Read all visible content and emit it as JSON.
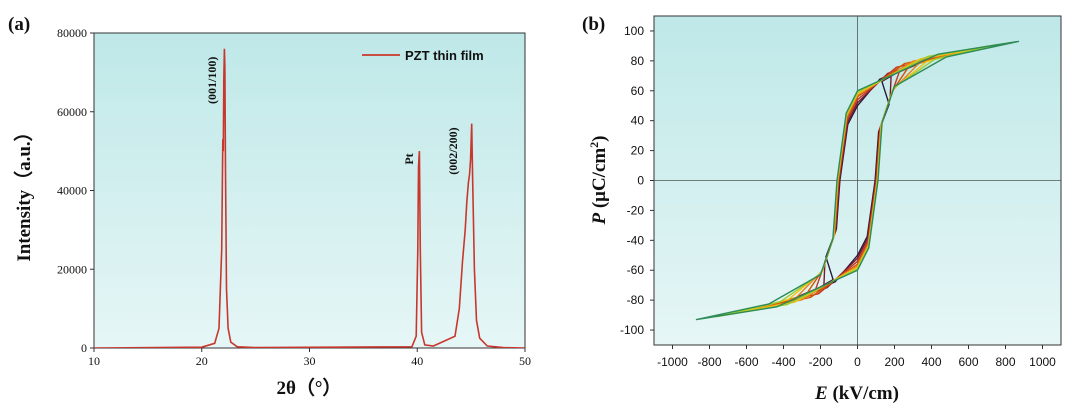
{
  "colors": {
    "plot_bg": "#bfe8e8",
    "plot_bg_light": "#e6f6f6",
    "xrd_line": "#c8372d"
  },
  "chart_data": [
    {
      "type": "line",
      "panel": "(a)",
      "xlabel": "2θ（°）",
      "ylabel": "Intensity（a.u.）",
      "xlim": [
        10,
        50
      ],
      "ylim": [
        0,
        80000
      ],
      "xticks": [
        10,
        20,
        30,
        40,
        50
      ],
      "yticks": [
        0,
        20000,
        40000,
        60000,
        80000
      ],
      "legend": {
        "position": "top-right",
        "entries": [
          "PZT thin film"
        ]
      },
      "annotations": [
        {
          "text": "(001/100)",
          "x": 21.3,
          "y": 68000
        },
        {
          "text": "Pt",
          "x": 39.6,
          "y": 48000
        },
        {
          "text": "(002/200)",
          "x": 43.7,
          "y": 50000
        }
      ],
      "series": [
        {
          "name": "PZT thin film",
          "x": [
            10,
            20,
            21.2,
            21.6,
            21.85,
            21.95,
            22.0,
            22.05,
            22.1,
            22.15,
            22.2,
            22.3,
            22.45,
            22.7,
            23.3,
            25,
            39.5,
            39.9,
            40.05,
            40.12,
            40.2,
            40.28,
            40.4,
            40.7,
            41.5,
            43.5,
            43.9,
            44.2,
            44.45,
            44.6,
            44.75,
            44.85,
            44.95,
            45.05,
            45.15,
            45.3,
            45.5,
            45.8,
            46.5,
            48,
            50
          ],
          "y": [
            0,
            200,
            1200,
            5000,
            25000,
            53000,
            50000,
            68000,
            76000,
            71000,
            45000,
            15000,
            5000,
            1500,
            300,
            100,
            300,
            3000,
            25000,
            46000,
            50000,
            25000,
            4000,
            800,
            500,
            3000,
            10000,
            22000,
            30000,
            37000,
            42000,
            44000,
            48000,
            57000,
            42000,
            20000,
            7000,
            2500,
            500,
            100,
            0
          ]
        }
      ]
    },
    {
      "type": "line",
      "panel": "(b)",
      "xlabel": "E (kV/cm)",
      "ylabel": "P (μC/cm2)",
      "xlim": [
        -1100,
        1100
      ],
      "ylim": [
        -110,
        110
      ],
      "xticks": [
        -1000,
        -800,
        -600,
        -400,
        -200,
        0,
        200,
        400,
        600,
        800,
        1000
      ],
      "yticks": [
        -100,
        -80,
        -60,
        -40,
        -20,
        0,
        20,
        40,
        60,
        80,
        100
      ],
      "series": [
        {
          "Emax": 240,
          "Pmax": 74,
          "Pr": 50,
          "Ec": 95,
          "Pmid": 60,
          "color": "#2a1a3a"
        },
        {
          "Emax": 330,
          "Pmax": 78,
          "Pr": 52,
          "Ec": 98,
          "Pmid": 64,
          "color": "#7a1a2a"
        },
        {
          "Emax": 420,
          "Pmax": 82,
          "Pr": 54,
          "Ec": 102,
          "Pmid": 68,
          "color": "#c0392b"
        },
        {
          "Emax": 510,
          "Pmax": 85,
          "Pr": 56,
          "Ec": 104,
          "Pmid": 70,
          "color": "#d35400"
        },
        {
          "Emax": 600,
          "Pmax": 87,
          "Pr": 57,
          "Ec": 106,
          "Pmid": 71,
          "color": "#e67e22"
        },
        {
          "Emax": 680,
          "Pmax": 89,
          "Pr": 58,
          "Ec": 107,
          "Pmid": 72,
          "color": "#f1c40f"
        },
        {
          "Emax": 760,
          "Pmax": 91,
          "Pr": 59,
          "Ec": 109,
          "Pmid": 73,
          "color": "#9acd32"
        },
        {
          "Emax": 870,
          "Pmax": 93,
          "Pr": 60,
          "Ec": 111,
          "Pmid": 74,
          "color": "#2e8b57"
        }
      ]
    }
  ]
}
